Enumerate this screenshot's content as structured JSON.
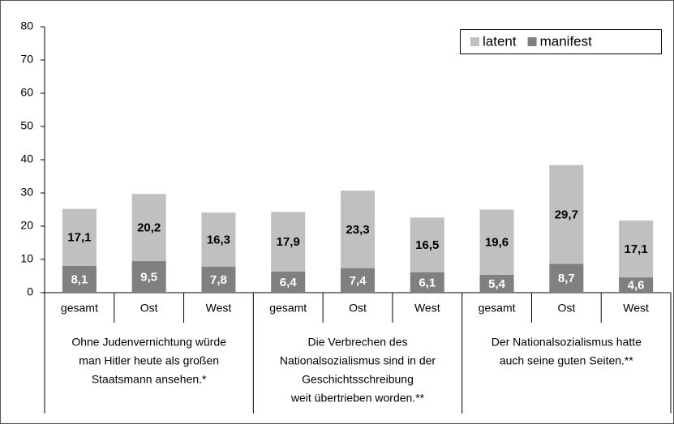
{
  "chart_data": {
    "type": "stacked_bar",
    "categories": [
      "gesamt",
      "Ost",
      "West",
      "gesamt",
      "Ost",
      "West",
      "gesamt",
      "Ost",
      "West"
    ],
    "groups": [
      {
        "lines": [
          "Ohne Judenvernichtung würde",
          "man Hitler heute als großen",
          "Staatsmann ansehen.*"
        ],
        "size": 3
      },
      {
        "lines": [
          "Die Verbrechen des",
          "Nationalsozialismus sind in der",
          "Geschichtsschreibung",
          "weit übertrieben worden.**"
        ],
        "size": 3
      },
      {
        "lines": [
          "Der Nationalsozialismus hatte",
          "auch seine guten Seiten.**"
        ],
        "size": 3
      }
    ],
    "series": [
      {
        "name": "latent",
        "color": "#c0c0c0",
        "label_color": "#000000",
        "values": [
          17.1,
          20.2,
          16.3,
          17.9,
          23.3,
          16.5,
          19.6,
          29.7,
          17.1
        ],
        "value_labels": [
          "17,1",
          "20,2",
          "16,3",
          "17,9",
          "23,3",
          "16,5",
          "19,6",
          "29,7",
          "17,1"
        ]
      },
      {
        "name": "manifest",
        "color": "#808080",
        "label_color": "#ffffff",
        "values": [
          8.1,
          9.5,
          7.8,
          6.4,
          7.4,
          6.1,
          5.4,
          8.7,
          4.6
        ],
        "value_labels": [
          "8,1",
          "9,5",
          "7,8",
          "6,4",
          "7,4",
          "6,1",
          "5,4",
          "8,7",
          "4,6"
        ]
      }
    ],
    "ylim": [
      0,
      80
    ],
    "yticks": [
      0,
      10,
      20,
      30,
      40,
      50,
      60,
      70,
      80
    ],
    "grid": false,
    "legend": "top-right"
  }
}
